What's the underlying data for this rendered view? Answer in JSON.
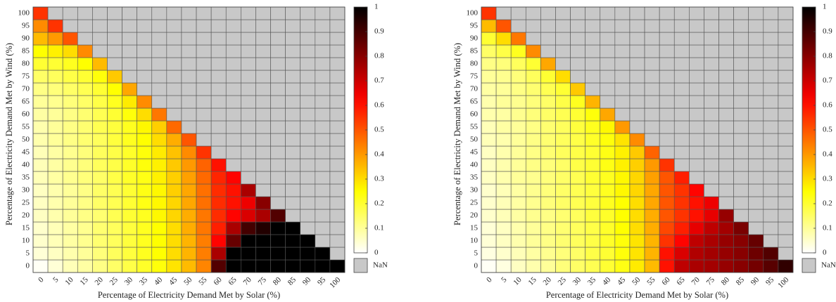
{
  "chart_data": [
    {
      "type": "heatmap",
      "x_label": "Percentage of Electricity Demand Met by Solar (%)",
      "y_label": "Percentage of Electricity Demand Met by Wind (%)",
      "x": [
        0,
        5,
        10,
        15,
        20,
        25,
        30,
        35,
        40,
        45,
        50,
        55,
        60,
        65,
        70,
        75,
        80,
        85,
        90,
        95,
        100
      ],
      "y": [
        0,
        5,
        10,
        15,
        20,
        25,
        30,
        35,
        40,
        45,
        50,
        55,
        60,
        65,
        70,
        75,
        80,
        85,
        90,
        95,
        100
      ],
      "z": [
        [
          0.01,
          0.04,
          0.07,
          0.09,
          0.12,
          0.15,
          0.18,
          0.21,
          0.24,
          0.29,
          0.35,
          0.43,
          0.88,
          1,
          1,
          1,
          1,
          1,
          1,
          1,
          1
        ],
        [
          0.04,
          0.06,
          0.08,
          0.1,
          0.13,
          0.16,
          0.19,
          0.22,
          0.25,
          0.3,
          0.36,
          0.44,
          0.75,
          1,
          1,
          1,
          1,
          1,
          1,
          1,
          null
        ],
        [
          0.05,
          0.07,
          0.09,
          0.11,
          0.14,
          0.16,
          0.19,
          0.22,
          0.25,
          0.3,
          0.36,
          0.44,
          0.62,
          0.85,
          1,
          1,
          1,
          1,
          1,
          null,
          null
        ],
        [
          0.05,
          0.07,
          0.09,
          0.11,
          0.14,
          0.16,
          0.19,
          0.22,
          0.25,
          0.3,
          0.37,
          0.45,
          0.58,
          0.75,
          0.9,
          0.95,
          1,
          1,
          null,
          null,
          null
        ],
        [
          0.06,
          0.08,
          0.1,
          0.12,
          0.14,
          0.17,
          0.2,
          0.22,
          0.26,
          0.31,
          0.37,
          0.45,
          0.56,
          0.62,
          0.68,
          0.75,
          0.88,
          null,
          null,
          null,
          null
        ],
        [
          0.06,
          0.08,
          0.1,
          0.12,
          0.15,
          0.17,
          0.2,
          0.23,
          0.26,
          0.31,
          0.38,
          0.46,
          0.56,
          0.6,
          0.65,
          0.8,
          null,
          null,
          null,
          null,
          null
        ],
        [
          0.06,
          0.08,
          0.1,
          0.12,
          0.15,
          0.17,
          0.2,
          0.23,
          0.26,
          0.32,
          0.38,
          0.46,
          0.56,
          0.6,
          0.75,
          null,
          null,
          null,
          null,
          null,
          null
        ],
        [
          0.07,
          0.09,
          0.11,
          0.13,
          0.15,
          0.18,
          0.21,
          0.23,
          0.27,
          0.32,
          0.39,
          0.47,
          0.57,
          0.62,
          null,
          null,
          null,
          null,
          null,
          null,
          null
        ],
        [
          0.07,
          0.09,
          0.11,
          0.13,
          0.16,
          0.18,
          0.21,
          0.24,
          0.27,
          0.33,
          0.4,
          0.48,
          0.6,
          null,
          null,
          null,
          null,
          null,
          null,
          null,
          null
        ],
        [
          0.07,
          0.09,
          0.11,
          0.13,
          0.16,
          0.18,
          0.21,
          0.24,
          0.28,
          0.34,
          0.42,
          0.55,
          null,
          null,
          null,
          null,
          null,
          null,
          null,
          null,
          null
        ],
        [
          0.08,
          0.1,
          0.12,
          0.14,
          0.16,
          0.19,
          0.22,
          0.25,
          0.3,
          0.37,
          0.5,
          null,
          null,
          null,
          null,
          null,
          null,
          null,
          null,
          null,
          null
        ],
        [
          0.08,
          0.1,
          0.12,
          0.14,
          0.17,
          0.19,
          0.22,
          0.26,
          0.32,
          0.47,
          null,
          null,
          null,
          null,
          null,
          null,
          null,
          null,
          null,
          null,
          null
        ],
        [
          0.09,
          0.1,
          0.12,
          0.14,
          0.17,
          0.2,
          0.24,
          0.3,
          0.45,
          null,
          null,
          null,
          null,
          null,
          null,
          null,
          null,
          null,
          null,
          null,
          null
        ],
        [
          0.1,
          0.11,
          0.13,
          0.15,
          0.18,
          0.22,
          0.28,
          0.42,
          null,
          null,
          null,
          null,
          null,
          null,
          null,
          null,
          null,
          null,
          null,
          null,
          null
        ],
        [
          0.12,
          0.13,
          0.15,
          0.17,
          0.2,
          0.25,
          0.38,
          null,
          null,
          null,
          null,
          null,
          null,
          null,
          null,
          null,
          null,
          null,
          null,
          null,
          null
        ],
        [
          0.15,
          0.16,
          0.18,
          0.2,
          0.24,
          0.33,
          null,
          null,
          null,
          null,
          null,
          null,
          null,
          null,
          null,
          null,
          null,
          null,
          null,
          null,
          null
        ],
        [
          0.2,
          0.2,
          0.22,
          0.25,
          0.35,
          null,
          null,
          null,
          null,
          null,
          null,
          null,
          null,
          null,
          null,
          null,
          null,
          null,
          null,
          null,
          null
        ],
        [
          0.25,
          0.27,
          0.3,
          0.42,
          null,
          null,
          null,
          null,
          null,
          null,
          null,
          null,
          null,
          null,
          null,
          null,
          null,
          null,
          null,
          null,
          null
        ],
        [
          0.35,
          0.4,
          0.5,
          null,
          null,
          null,
          null,
          null,
          null,
          null,
          null,
          null,
          null,
          null,
          null,
          null,
          null,
          null,
          null,
          null,
          null
        ],
        [
          0.42,
          0.55,
          null,
          null,
          null,
          null,
          null,
          null,
          null,
          null,
          null,
          null,
          null,
          null,
          null,
          null,
          null,
          null,
          null,
          null,
          null
        ],
        [
          0.55,
          null,
          null,
          null,
          null,
          null,
          null,
          null,
          null,
          null,
          null,
          null,
          null,
          null,
          null,
          null,
          null,
          null,
          null,
          null,
          null
        ]
      ],
      "zlim": [
        0,
        1
      ],
      "zticks": [
        0,
        0.1,
        0.2,
        0.3,
        0.4,
        0.5,
        0.6,
        0.7,
        0.8,
        0.9,
        1
      ],
      "nan_label": "NaN",
      "nan_color": "#c8c8c8"
    },
    {
      "type": "heatmap",
      "x_label": "Percentage of Electricity Demand Met by Solar (%)",
      "y_label": "Percentage of Electricity Demand Met by Wind (%)",
      "x": [
        0,
        5,
        10,
        15,
        20,
        25,
        30,
        35,
        40,
        45,
        50,
        55,
        60,
        65,
        70,
        75,
        80,
        85,
        90,
        95,
        100
      ],
      "y": [
        0,
        5,
        10,
        15,
        20,
        25,
        30,
        35,
        40,
        45,
        50,
        55,
        60,
        65,
        70,
        75,
        80,
        85,
        90,
        95,
        100
      ],
      "z": [
        [
          0.01,
          0.03,
          0.06,
          0.08,
          0.1,
          0.13,
          0.15,
          0.17,
          0.2,
          0.23,
          0.28,
          0.35,
          0.6,
          0.72,
          0.75,
          0.76,
          0.78,
          0.8,
          0.83,
          0.87,
          0.93
        ],
        [
          0.03,
          0.05,
          0.07,
          0.09,
          0.11,
          0.13,
          0.15,
          0.18,
          0.2,
          0.24,
          0.29,
          0.36,
          0.6,
          0.68,
          0.74,
          0.76,
          0.78,
          0.8,
          0.84,
          0.88,
          null
        ],
        [
          0.04,
          0.06,
          0.08,
          0.1,
          0.12,
          0.14,
          0.16,
          0.18,
          0.21,
          0.24,
          0.29,
          0.36,
          0.55,
          0.62,
          0.72,
          0.75,
          0.78,
          0.8,
          0.85,
          null,
          null
        ],
        [
          0.04,
          0.06,
          0.08,
          0.1,
          0.12,
          0.14,
          0.16,
          0.18,
          0.21,
          0.25,
          0.3,
          0.37,
          0.52,
          0.58,
          0.66,
          0.72,
          0.76,
          0.82,
          null,
          null,
          null
        ],
        [
          0.05,
          0.07,
          0.09,
          0.11,
          0.12,
          0.14,
          0.16,
          0.19,
          0.21,
          0.25,
          0.3,
          0.37,
          0.5,
          0.55,
          0.6,
          0.66,
          0.78,
          null,
          null,
          null,
          null
        ],
        [
          0.05,
          0.07,
          0.09,
          0.11,
          0.13,
          0.15,
          0.17,
          0.19,
          0.22,
          0.25,
          0.3,
          0.38,
          0.5,
          0.55,
          0.6,
          0.65,
          null,
          null,
          null,
          null,
          null
        ],
        [
          0.05,
          0.07,
          0.09,
          0.11,
          0.13,
          0.15,
          0.17,
          0.19,
          0.22,
          0.26,
          0.31,
          0.38,
          0.5,
          0.55,
          0.62,
          null,
          null,
          null,
          null,
          null,
          null
        ],
        [
          0.06,
          0.08,
          0.1,
          0.11,
          0.13,
          0.15,
          0.17,
          0.2,
          0.22,
          0.26,
          0.31,
          0.39,
          0.5,
          0.58,
          null,
          null,
          null,
          null,
          null,
          null,
          null
        ],
        [
          0.06,
          0.08,
          0.1,
          0.12,
          0.13,
          0.15,
          0.18,
          0.2,
          0.23,
          0.27,
          0.32,
          0.4,
          0.55,
          null,
          null,
          null,
          null,
          null,
          null,
          null,
          null
        ],
        [
          0.06,
          0.08,
          0.1,
          0.12,
          0.14,
          0.16,
          0.18,
          0.2,
          0.23,
          0.27,
          0.33,
          0.48,
          null,
          null,
          null,
          null,
          null,
          null,
          null,
          null,
          null
        ],
        [
          0.07,
          0.08,
          0.1,
          0.12,
          0.14,
          0.16,
          0.18,
          0.21,
          0.24,
          0.29,
          0.42,
          null,
          null,
          null,
          null,
          null,
          null,
          null,
          null,
          null,
          null
        ],
        [
          0.07,
          0.09,
          0.1,
          0.12,
          0.14,
          0.16,
          0.19,
          0.22,
          0.26,
          0.4,
          null,
          null,
          null,
          null,
          null,
          null,
          null,
          null,
          null,
          null,
          null
        ],
        [
          0.08,
          0.09,
          0.11,
          0.13,
          0.15,
          0.17,
          0.2,
          0.24,
          0.38,
          null,
          null,
          null,
          null,
          null,
          null,
          null,
          null,
          null,
          null,
          null,
          null
        ],
        [
          0.08,
          0.1,
          0.11,
          0.13,
          0.15,
          0.18,
          0.22,
          0.36,
          null,
          null,
          null,
          null,
          null,
          null,
          null,
          null,
          null,
          null,
          null,
          null,
          null
        ],
        [
          0.09,
          0.1,
          0.12,
          0.14,
          0.17,
          0.2,
          0.33,
          null,
          null,
          null,
          null,
          null,
          null,
          null,
          null,
          null,
          null,
          null,
          null,
          null,
          null
        ],
        [
          0.1,
          0.11,
          0.13,
          0.16,
          0.2,
          0.3,
          null,
          null,
          null,
          null,
          null,
          null,
          null,
          null,
          null,
          null,
          null,
          null,
          null,
          null,
          null
        ],
        [
          0.12,
          0.13,
          0.16,
          0.2,
          0.38,
          null,
          null,
          null,
          null,
          null,
          null,
          null,
          null,
          null,
          null,
          null,
          null,
          null,
          null,
          null,
          null
        ],
        [
          0.15,
          0.18,
          0.22,
          0.42,
          null,
          null,
          null,
          null,
          null,
          null,
          null,
          null,
          null,
          null,
          null,
          null,
          null,
          null,
          null,
          null,
          null
        ],
        [
          0.2,
          0.3,
          0.45,
          null,
          null,
          null,
          null,
          null,
          null,
          null,
          null,
          null,
          null,
          null,
          null,
          null,
          null,
          null,
          null,
          null,
          null
        ],
        [
          0.35,
          0.5,
          null,
          null,
          null,
          null,
          null,
          null,
          null,
          null,
          null,
          null,
          null,
          null,
          null,
          null,
          null,
          null,
          null,
          null,
          null
        ],
        [
          0.55,
          null,
          null,
          null,
          null,
          null,
          null,
          null,
          null,
          null,
          null,
          null,
          null,
          null,
          null,
          null,
          null,
          null,
          null,
          null,
          null
        ]
      ],
      "zlim": [
        0,
        1
      ],
      "zticks": [
        0,
        0.1,
        0.2,
        0.3,
        0.4,
        0.5,
        0.6,
        0.7,
        0.8,
        0.9,
        1
      ],
      "nan_label": "NaN",
      "nan_color": "#c8c8c8"
    }
  ]
}
